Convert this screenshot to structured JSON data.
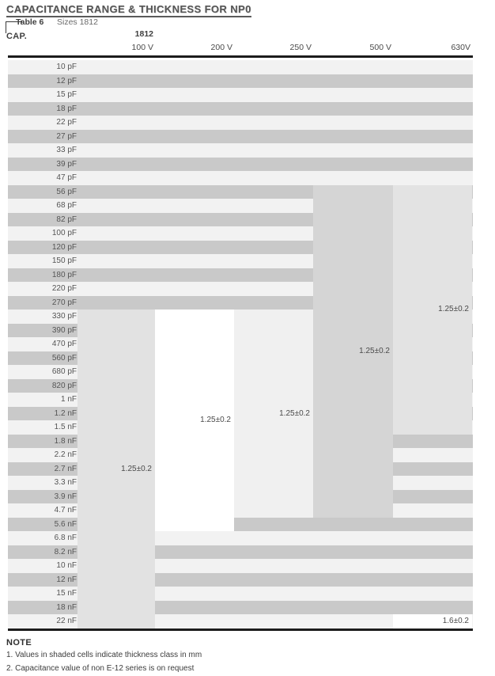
{
  "title": "CAPACITANCE RANGE & THICKNESS FOR NP0",
  "table_label": "Table 6",
  "table_subtitle": "Sizes 1812",
  "cap_header": "CAP.",
  "size_header": "1812",
  "rows": [
    "10 pF",
    "12 pF",
    "15 pF",
    "18 pF",
    "22 pF",
    "27 pF",
    "33 pF",
    "39 pF",
    "47 pF",
    "56 pF",
    "68 pF",
    "82 pF",
    "100 pF",
    "120 pF",
    "150 pF",
    "180 pF",
    "220 pF",
    "270 pF",
    "330 pF",
    "390 pF",
    "470 pF",
    "560 pF",
    "680 pF",
    "820 pF",
    "1 nF",
    "1.2 nF",
    "1.5 nF",
    "1.8 nF",
    "2.2 nF",
    "2.7 nF",
    "3.3 nF",
    "3.9 nF",
    "4.7 nF",
    "5.6 nF",
    "6.8 nF",
    "8.2 nF",
    "10 nF",
    "12 nF",
    "15 nF",
    "18 nF",
    "22 nF"
  ],
  "columns": [
    {
      "header": "100 V",
      "blocks": [
        {
          "from": "330 pF",
          "to": "22 nF",
          "value": "1.25±0.2",
          "shade": "#e2e2e2"
        }
      ]
    },
    {
      "header": "200 V",
      "blocks": [
        {
          "from": "330 pF",
          "to": "5.6 nF",
          "value": "1.25±0.2",
          "shade": "#ffffff"
        }
      ]
    },
    {
      "header": "250 V",
      "blocks": [
        {
          "from": "330 pF",
          "to": "4.7 nF",
          "value": "1.25±0.2",
          "shade": "#f0f0f0"
        }
      ]
    },
    {
      "header": "500 V",
      "blocks": [
        {
          "from": "56 pF",
          "to": "4.7 nF",
          "value": "1.25±0.2",
          "shade": "#d5d5d5"
        }
      ]
    },
    {
      "header": "630V",
      "blocks": [
        {
          "from": "56 pF",
          "to": "1.5 nF",
          "value": "1.25±0.2",
          "shade": "#e3e3e3"
        },
        {
          "from": "22 nF",
          "to": "22 nF",
          "value": "1.6±0.2",
          "shade": "#ffffff"
        }
      ]
    }
  ],
  "colors": {
    "band_dark": "#c9c9c9",
    "band_light": "#f2f2f2",
    "border": "#1c1c1c",
    "text": "#4a4a4a"
  },
  "note": {
    "title": "NOTE",
    "items": [
      "1. Values in shaded cells indicate thickness class in mm",
      "2. Capacitance value of non E-12 series is on request"
    ]
  }
}
